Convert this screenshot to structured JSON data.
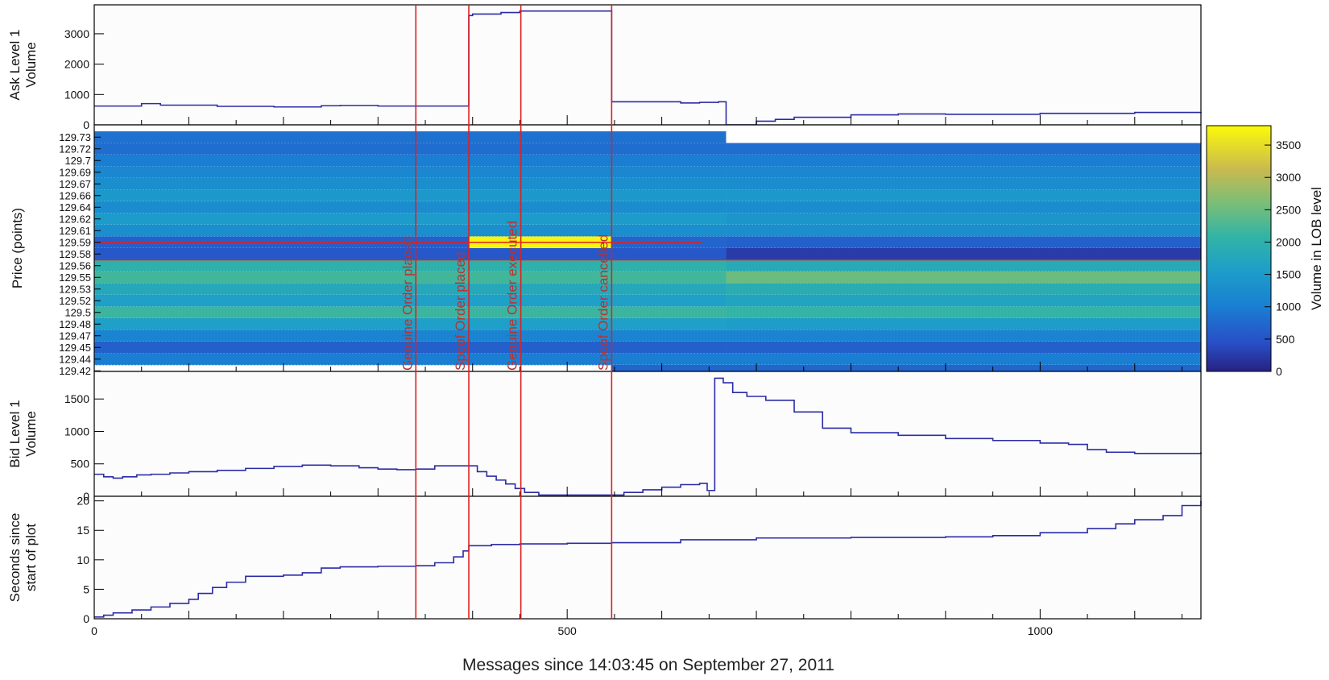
{
  "figure": {
    "xlabel": "Messages since 14:03:45 on September 27, 2011",
    "x_ticks": [
      "0",
      "500",
      "1000"
    ],
    "colors": {
      "line": "#2b2ba6",
      "event": "#e02020",
      "event_text": "#b83232",
      "frame": "#000000",
      "panel_bg": "#fcfcfc"
    }
  },
  "events": [
    {
      "x": 340,
      "label": "Genuine Order placed"
    },
    {
      "x": 396,
      "label": "Spoof Order placed"
    },
    {
      "x": 451,
      "label": "Genuine Order executed"
    },
    {
      "x": 547,
      "label": "Spoof Order cancelled"
    }
  ],
  "chart_data": [
    {
      "type": "line",
      "ylabel": "Ask Level 1 Volume",
      "xlim": [
        0,
        1170
      ],
      "ylim": [
        0,
        3900
      ],
      "yticks": [
        "0",
        "1000",
        "2000",
        "3000"
      ],
      "x": [
        0,
        25,
        50,
        70,
        100,
        130,
        160,
        190,
        220,
        240,
        260,
        300,
        340,
        370,
        385,
        396,
        400,
        430,
        450,
        490,
        547,
        560,
        620,
        640,
        660,
        668,
        690,
        700,
        720,
        740,
        800,
        850,
        900,
        1000,
        1100,
        1170
      ],
      "y": [
        620,
        620,
        700,
        650,
        650,
        610,
        610,
        590,
        590,
        630,
        640,
        620,
        620,
        620,
        620,
        3600,
        3650,
        3700,
        3750,
        3750,
        760,
        760,
        720,
        740,
        760,
        0,
        0,
        120,
        180,
        250,
        330,
        360,
        350,
        380,
        410,
        420
      ]
    },
    {
      "type": "heatmap",
      "ylabel": "Price (points)",
      "colorbar_label": "Volume in LOB level",
      "colorbar_ticks": [
        "0",
        "500",
        "1000",
        "1500",
        "2000",
        "2500",
        "3000",
        "3500"
      ],
      "zlim": [
        0,
        3800
      ],
      "price_levels": [
        "129.73",
        "129.72",
        "129.7",
        "129.69",
        "129.67",
        "129.66",
        "129.64",
        "129.62",
        "129.61",
        "129.59",
        "129.58",
        "129.56",
        "129.55",
        "129.53",
        "129.52",
        "129.5",
        "129.48",
        "129.47",
        "129.45",
        "129.44",
        "129.42"
      ],
      "segments_x": [
        0,
        396,
        547,
        668,
        1170
      ],
      "volumes": [
        [
          850,
          850,
          850,
          null
        ],
        [
          800,
          800,
          800,
          800
        ],
        [
          1000,
          1000,
          1000,
          1000
        ],
        [
          1150,
          1150,
          1150,
          1150
        ],
        [
          1300,
          1300,
          1300,
          1250
        ],
        [
          1450,
          1450,
          1450,
          1450
        ],
        [
          1250,
          1250,
          1250,
          1250
        ],
        [
          1500,
          1500,
          1500,
          1400
        ],
        [
          1300,
          1300,
          1300,
          1300
        ],
        [
          650,
          3750,
          700,
          650
        ],
        [
          550,
          550,
          550,
          250
        ],
        [
          2000,
          2000,
          2000,
          1850
        ],
        [
          2200,
          2200,
          2200,
          2500
        ],
        [
          1800,
          1800,
          1800,
          1900
        ],
        [
          1600,
          1600,
          1600,
          1700
        ],
        [
          2150,
          2150,
          2150,
          2100
        ],
        [
          1600,
          1600,
          1600,
          1550
        ],
        [
          1100,
          1100,
          1100,
          1100
        ],
        [
          650,
          650,
          650,
          650
        ],
        [
          1000,
          1000,
          1000,
          1000
        ],
        [
          null,
          null,
          700,
          700
        ]
      ]
    },
    {
      "type": "line",
      "ylabel": "Bid Level 1 Volume",
      "xlim": [
        0,
        1170
      ],
      "ylim": [
        0,
        1900
      ],
      "yticks": [
        "0",
        "500",
        "1000",
        "1500"
      ],
      "x": [
        0,
        10,
        20,
        30,
        45,
        60,
        80,
        100,
        130,
        160,
        190,
        220,
        250,
        280,
        300,
        320,
        340,
        360,
        385,
        396,
        405,
        415,
        425,
        435,
        445,
        455,
        470,
        500,
        540,
        560,
        580,
        600,
        620,
        640,
        648,
        656,
        665,
        675,
        690,
        710,
        740,
        770,
        800,
        850,
        900,
        950,
        1000,
        1030,
        1050,
        1070,
        1100,
        1170
      ],
      "y": [
        340,
        300,
        280,
        300,
        330,
        340,
        360,
        380,
        400,
        430,
        460,
        480,
        470,
        440,
        420,
        410,
        420,
        470,
        470,
        470,
        380,
        310,
        250,
        190,
        120,
        60,
        20,
        20,
        20,
        60,
        100,
        140,
        180,
        200,
        90,
        1820,
        1750,
        1600,
        1540,
        1480,
        1300,
        1050,
        980,
        940,
        890,
        860,
        820,
        800,
        720,
        680,
        660,
        680
      ]
    },
    {
      "type": "line",
      "ylabel": "Seconds since start of plot",
      "xlim": [
        0,
        1170
      ],
      "ylim": [
        0,
        20.5
      ],
      "yticks": [
        "0",
        "5",
        "10",
        "15",
        "20"
      ],
      "x": [
        0,
        10,
        20,
        40,
        60,
        80,
        100,
        110,
        125,
        140,
        160,
        200,
        220,
        240,
        260,
        300,
        340,
        360,
        380,
        390,
        396,
        420,
        450,
        500,
        547,
        620,
        700,
        800,
        900,
        950,
        1000,
        1050,
        1080,
        1100,
        1130,
        1150,
        1170
      ],
      "y": [
        0.3,
        0.6,
        1.0,
        1.5,
        2.0,
        2.6,
        3.3,
        4.3,
        5.3,
        6.2,
        7.2,
        7.4,
        7.8,
        8.6,
        8.8,
        8.9,
        9.0,
        9.5,
        10.5,
        11.5,
        12.4,
        12.6,
        12.7,
        12.8,
        12.9,
        13.4,
        13.7,
        13.8,
        13.9,
        14.1,
        14.6,
        15.3,
        16.1,
        16.8,
        17.5,
        19.2,
        20.0
      ]
    }
  ]
}
